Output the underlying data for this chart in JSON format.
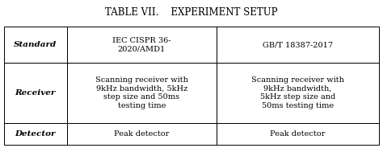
{
  "title": "TABLE VII.    EXPERIMENT SETUP",
  "row_labels": [
    "Standard",
    "Receiver",
    "Detector"
  ],
  "col1_data": [
    "IEC CISPR 36-\n2020/AMD1",
    "Scanning receiver with\n9kHz bandwidth, 5kHz\nstep size and 50ms\ntesting time",
    "Peak detector"
  ],
  "col2_data": [
    "GB/T 18387-2017",
    "Scanning receiver with\n9kHz bandwidth,\n5kHz step size and\n50ms testing time",
    "Peak detector"
  ],
  "background_color": "#ffffff",
  "border_color": "#000000",
  "text_color": "#000000",
  "title_fontsize": 8.5,
  "label_fontsize": 7.5,
  "cell_fontsize": 7.0,
  "fig_width": 4.74,
  "fig_height": 1.84,
  "dpi": 100
}
